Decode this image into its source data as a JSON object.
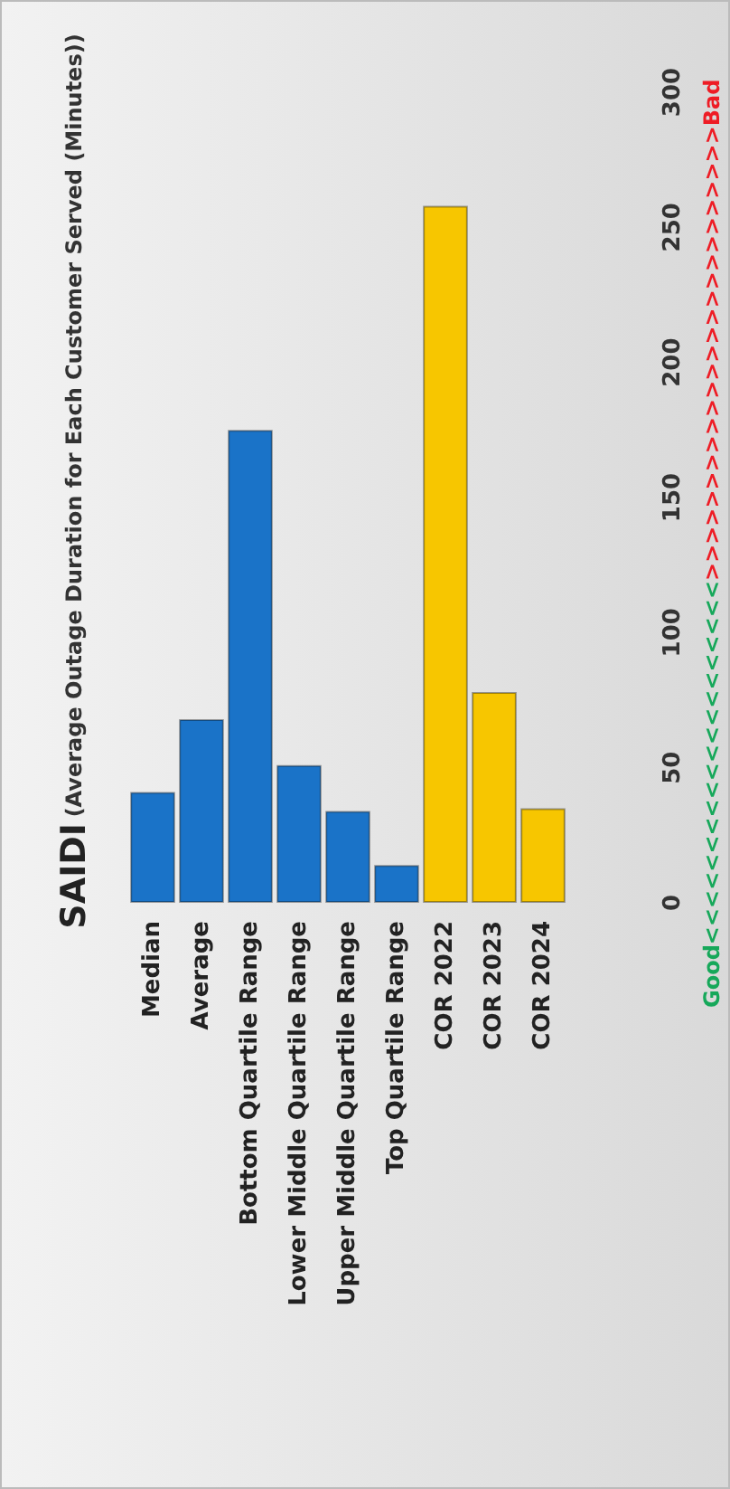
{
  "chart_data": {
    "type": "bar",
    "title": "SAIDI",
    "subtitle": "(Average Outage Duration for Each Customer Served (Minutes))",
    "categories": [
      "Median",
      "Average",
      "Bottom Quartile Range",
      "Lower Middle Quartile Range",
      "Upper Middle Quartile Range",
      "Top Quartile Range",
      "COR 2022",
      "COR 2023",
      "COR 2024"
    ],
    "values": [
      41,
      68,
      175,
      51,
      34,
      14,
      258,
      78,
      35
    ],
    "colors": [
      "#1a73c8",
      "#1a73c8",
      "#1a73c8",
      "#1a73c8",
      "#1a73c8",
      "#1a73c8",
      "#f7c600",
      "#f7c600",
      "#f7c600"
    ],
    "ylim": [
      0,
      300
    ],
    "yticks": [
      0,
      50,
      100,
      150,
      200,
      250,
      300
    ],
    "grid": false,
    "annotations": [
      "Good<<<<<<<<<<<<<<<<<<<<",
      ">>>>>>>>>>>>>>>>>>>>>>>>>Bad"
    ]
  }
}
